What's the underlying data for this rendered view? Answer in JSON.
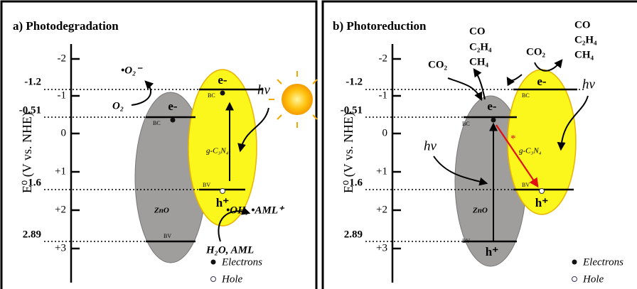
{
  "panels": [
    {
      "title": "a) Photodegradation",
      "axis_label": "E⁰ (V vs. NHE)",
      "ticks": [
        "-2",
        "-1",
        "0",
        "+1",
        "+2",
        "+3"
      ],
      "levels": [
        "-1.2",
        "-0.51",
        "1.6",
        "2.89"
      ],
      "bands": [
        "BC",
        "BC",
        "BV",
        "BV"
      ],
      "electrons": [
        "e-",
        "e-"
      ],
      "holes": [
        "h⁺"
      ],
      "lights": [
        "hν"
      ],
      "semiconductors": [
        "ZnO",
        "g-C₃N₄"
      ],
      "species": [
        "•O₂⁻",
        "O₂",
        "•OH, •AML⁺",
        "H₂O, AML"
      ],
      "legend": [
        "Electrons",
        "Hole"
      ]
    },
    {
      "title": "b) Photoreduction",
      "axis_label": "E⁰ (V vs. NHE)",
      "ticks": [
        "-2",
        "-1",
        "0",
        "+1",
        "+2",
        "+3"
      ],
      "levels": [
        "-1.2",
        "-0.51",
        "1.6",
        "2.89"
      ],
      "bands": [
        "BC",
        "BC",
        "BV",
        "BV"
      ],
      "electrons": [
        "e-",
        "e-"
      ],
      "holes": [
        "h⁺",
        "h⁺"
      ],
      "lights": [
        "hν",
        "hν"
      ],
      "semiconductors": [
        "ZnO",
        "g-C₃N₄"
      ],
      "species": [
        "CO₂",
        "CO",
        "C₂H₄",
        "CH₄",
        "CO₂",
        "CO",
        "C₂H₄",
        "CH₄"
      ],
      "mark": "*",
      "legend": [
        "Electrons",
        "Hole"
      ]
    }
  ]
}
